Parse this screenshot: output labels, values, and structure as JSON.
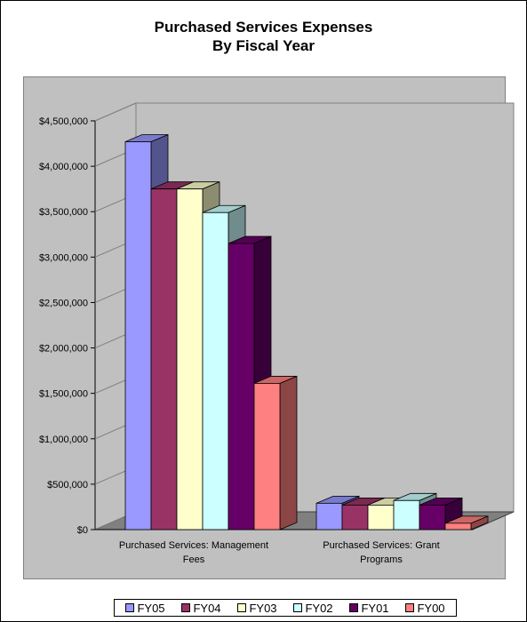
{
  "chart_data": {
    "type": "bar",
    "title": "Purchased Services Expenses",
    "subtitle": "By Fiscal Year",
    "categories": [
      "Purchased Services:  Management Fees",
      "Purchased Services:  Grant Programs"
    ],
    "category_label_lines": [
      [
        "Purchased Services:  Management",
        "Fees"
      ],
      [
        "Purchased Services:  Grant",
        "Programs"
      ]
    ],
    "series": [
      {
        "name": "FY05",
        "color": "#9999ff",
        "values": [
          4270000,
          290000
        ]
      },
      {
        "name": "FY04",
        "color": "#993366",
        "values": [
          3750000,
          270000
        ]
      },
      {
        "name": "FY03",
        "color": "#ffffcc",
        "values": [
          3750000,
          270000
        ]
      },
      {
        "name": "FY02",
        "color": "#ccffff",
        "values": [
          3490000,
          320000
        ]
      },
      {
        "name": "FY01",
        "color": "#660066",
        "values": [
          3150000,
          270000
        ]
      },
      {
        "name": "FY00",
        "color": "#ff8080",
        "values": [
          1610000,
          70000
        ]
      }
    ],
    "ylim": [
      0,
      4500000
    ],
    "yticks": [
      0,
      500000,
      1000000,
      1500000,
      2000000,
      2500000,
      3000000,
      3500000,
      4000000,
      4500000
    ],
    "ytick_labels": [
      "$0",
      "$500,000",
      "$1,000,000",
      "$1,500,000",
      "$2,000,000",
      "$2,500,000",
      "$3,000,000",
      "$3,500,000",
      "$4,000,000",
      "$4,500,000"
    ],
    "xlabel": "",
    "ylabel": "",
    "grid": false,
    "legend_position": "bottom",
    "style": "3d-clustered-column",
    "plot_background": "#c0c0c0"
  }
}
